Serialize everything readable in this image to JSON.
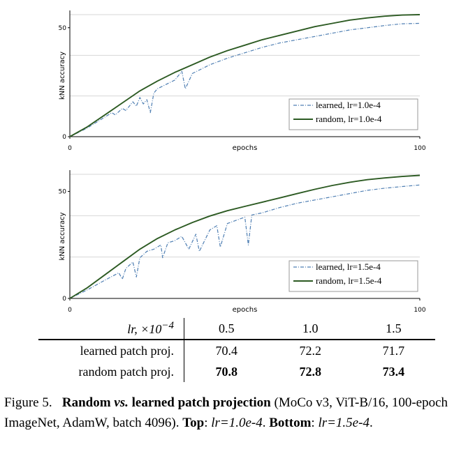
{
  "colors": {
    "learned": "#4f7fb3",
    "random": "#2c5a22",
    "grid": "#d7d7d7"
  },
  "chart_data": [
    {
      "type": "line",
      "xlabel": "epochs",
      "ylabel": "kNN accuracy",
      "xlim": [
        0,
        100
      ],
      "ylim": [
        0,
        56
      ],
      "xticks": [
        "0",
        "100"
      ],
      "yticks": [
        "0",
        "50"
      ],
      "grid": true,
      "legend_position": "bottom-right",
      "series": [
        {
          "name": "learned, lr=1.0e-4",
          "style": "dash-dot",
          "x": [
            0,
            5,
            10,
            12,
            13,
            15,
            16,
            18,
            19,
            20,
            21,
            22,
            23,
            24,
            25,
            30,
            32,
            33,
            35,
            40,
            45,
            50,
            55,
            60,
            65,
            70,
            75,
            80,
            85,
            90,
            95,
            100
          ],
          "y": [
            0,
            4,
            9,
            11,
            10,
            13,
            12,
            16,
            14,
            18,
            15,
            17,
            11,
            20,
            22,
            26,
            30,
            22,
            29,
            33,
            36,
            38.5,
            41,
            43,
            44.5,
            46,
            47.5,
            49,
            50,
            51,
            51.8,
            52
          ]
        },
        {
          "name": "random, lr=1.0e-4",
          "style": "solid",
          "x": [
            0,
            5,
            10,
            15,
            20,
            25,
            30,
            35,
            40,
            45,
            50,
            55,
            60,
            65,
            70,
            75,
            80,
            85,
            90,
            95,
            100
          ],
          "y": [
            0,
            4.5,
            10,
            15.5,
            21,
            25.5,
            29.5,
            33,
            36.5,
            39.5,
            42,
            44.5,
            46.5,
            48.5,
            50.5,
            52,
            53.5,
            54.5,
            55.3,
            55.8,
            56
          ]
        }
      ]
    },
    {
      "type": "line",
      "xlabel": "epochs",
      "ylabel": "kNN accuracy",
      "xlim": [
        0,
        100
      ],
      "ylim": [
        0,
        58
      ],
      "xticks": [
        "0",
        "100"
      ],
      "yticks": [
        "0",
        "50"
      ],
      "grid": true,
      "legend_position": "bottom-right",
      "series": [
        {
          "name": "learned, lr=1.5e-4",
          "style": "dash-dot",
          "x": [
            0,
            5,
            10,
            14,
            15,
            16,
            18,
            19,
            20,
            22,
            24,
            26,
            26.5,
            28,
            30,
            32,
            34,
            36,
            37,
            40,
            42,
            43,
            45,
            50,
            51,
            52,
            55,
            60,
            65,
            70,
            75,
            80,
            85,
            90,
            95,
            100
          ],
          "y": [
            0,
            4,
            8.5,
            12,
            9,
            14,
            17,
            10,
            19,
            22,
            23,
            25,
            19,
            26,
            27,
            29,
            23,
            30,
            22,
            32,
            34,
            24,
            35,
            38,
            25,
            39,
            40,
            42.5,
            44.5,
            46,
            47.5,
            49,
            50.5,
            51.5,
            52.3,
            53
          ]
        },
        {
          "name": "random, lr=1.5e-4",
          "style": "solid",
          "x": [
            0,
            5,
            10,
            15,
            20,
            25,
            30,
            35,
            40,
            45,
            50,
            55,
            60,
            65,
            70,
            75,
            80,
            85,
            90,
            95,
            100
          ],
          "y": [
            0,
            5,
            11,
            17,
            23,
            28,
            32,
            35.5,
            38.5,
            41,
            43,
            45,
            47,
            49,
            51,
            52.8,
            54.3,
            55.5,
            56.3,
            57,
            57.5
          ]
        }
      ]
    }
  ],
  "table": {
    "header": {
      "label": "lr, ×10",
      "exponent": "−4",
      "cols": [
        "0.5",
        "1.0",
        "1.5"
      ]
    },
    "rows": [
      {
        "label": "learned patch proj.",
        "values": [
          "70.4",
          "72.2",
          "71.7"
        ]
      },
      {
        "label": "random patch proj.",
        "values": [
          "70.8",
          "72.8",
          "73.4"
        ]
      }
    ]
  },
  "caption": {
    "fig": "Figure 5.",
    "title_a": "Random ",
    "vs": "vs.",
    "title_b": " learned patch projection",
    "body": " (MoCo v3, ViT-B/16, 100-epoch ImageNet, AdamW, batch 4096). ",
    "top_label": "Top",
    "top_sep": ": ",
    "top_value": "lr=1.0e-4",
    "mid": ". ",
    "bottom_label": "Bottom",
    "bottom_sep": ": ",
    "bottom_value": "lr=1.5e-4",
    "end": "."
  }
}
